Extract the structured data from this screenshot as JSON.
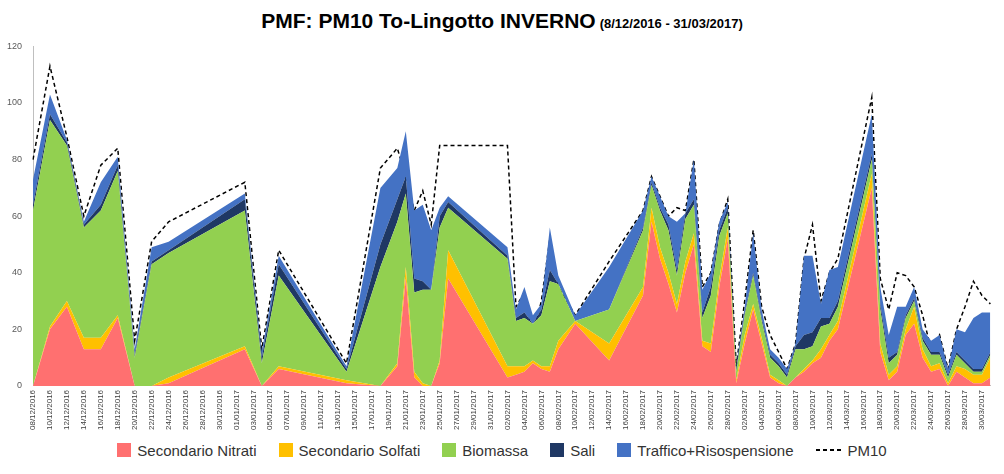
{
  "chart_data": {
    "type": "area",
    "stacked": true,
    "grid": false,
    "legend": "bottom",
    "title": "PMF: PM10 To-Lingotto INVERNO",
    "subtitle": "(8/12/2016 - 31/03/2017)",
    "ylim": [
      0,
      120
    ],
    "yticks": [
      0,
      20,
      40,
      60,
      80,
      100,
      120
    ],
    "categories": [
      "08/12/2016",
      null,
      "10/12/2016",
      null,
      "12/12/2016",
      null,
      "14/12/2016",
      null,
      "16/12/2016",
      null,
      "18/12/2016",
      null,
      "20/12/2016",
      null,
      "22/12/2016",
      null,
      "24/12/2016",
      null,
      "26/12/2016",
      null,
      "28/12/2016",
      null,
      "30/12/2016",
      null,
      "01/01/2017",
      null,
      "03/01/2017",
      null,
      "05/01/2017",
      null,
      "07/01/2017",
      null,
      "09/01/2017",
      null,
      "11/01/2017",
      null,
      "13/01/2017",
      null,
      "15/01/2017",
      null,
      "17/01/2017",
      null,
      "19/01/2017",
      null,
      "21/01/2017",
      null,
      "23/01/2017",
      null,
      "25/01/2017",
      null,
      "27/01/2017",
      null,
      "29/01/2017",
      null,
      "31/01/2017",
      null,
      "02/02/2017",
      null,
      "04/02/2017",
      null,
      "06/02/2017",
      null,
      "08/02/2017",
      null,
      "10/02/2017",
      null,
      "12/02/2017",
      null,
      "14/02/2017",
      null,
      "16/02/2017",
      null,
      "18/02/2017",
      null,
      "20/02/2017",
      null,
      "22/02/2017",
      null,
      "24/02/2017",
      null,
      "26/02/2017",
      null,
      "28/02/2017",
      null,
      "02/03/2017",
      null,
      "04/03/2017",
      null,
      "06/03/2017",
      null,
      "08/03/2017",
      null,
      "10/03/2017",
      null,
      "12/03/2017",
      null,
      "14/03/2017",
      null,
      "16/03/2017",
      null,
      "18/03/2017",
      null,
      "20/03/2017",
      null,
      "22/03/2017",
      null,
      "24/03/2017",
      null,
      "26/03/2017",
      null,
      "28/03/2017",
      null,
      "30/03/2017",
      null
    ],
    "series": [
      {
        "name": "Secondario Nitrati",
        "color": "#ff7070",
        "type": "area",
        "values": [
          0,
          null,
          20,
          null,
          28,
          null,
          13,
          null,
          13,
          null,
          24,
          null,
          0,
          null,
          0,
          null,
          1,
          null,
          null,
          null,
          null,
          null,
          null,
          null,
          null,
          13,
          null,
          0,
          null,
          6,
          null,
          null,
          null,
          null,
          null,
          null,
          null,
          1,
          null,
          null,
          null,
          0,
          null,
          7,
          38,
          3,
          0,
          0,
          8,
          38,
          null,
          null,
          null,
          null,
          null,
          null,
          3,
          4,
          5,
          8,
          6,
          5,
          13,
          null,
          22,
          null,
          null,
          null,
          9,
          null,
          null,
          null,
          32,
          58,
          45,
          36,
          26,
          40,
          50,
          14,
          12,
          35,
          52,
          1,
          15,
          27,
          15,
          3,
          1,
          0,
          3,
          5,
          8,
          10,
          16,
          20,
          null,
          null,
          null,
          70,
          12,
          2,
          5,
          18,
          22,
          10,
          5,
          6,
          0,
          5,
          3,
          1,
          1,
          3
        ]
      },
      {
        "name": "Secondario Solfati",
        "color": "#ffc000",
        "type": "area",
        "values": [
          0,
          null,
          1,
          null,
          2,
          null,
          4,
          null,
          4,
          null,
          1,
          null,
          0,
          null,
          0,
          null,
          2,
          null,
          null,
          null,
          null,
          null,
          null,
          null,
          null,
          1,
          null,
          0,
          null,
          1,
          null,
          null,
          null,
          null,
          null,
          null,
          null,
          1,
          null,
          null,
          null,
          0,
          null,
          1,
          4,
          2,
          1,
          0,
          1,
          10,
          null,
          null,
          null,
          null,
          null,
          null,
          4,
          3,
          2,
          1,
          1,
          2,
          3,
          null,
          1,
          null,
          null,
          null,
          6,
          null,
          null,
          null,
          3,
          5,
          4,
          4,
          3,
          4,
          4,
          2,
          3,
          3,
          4,
          1,
          3,
          2,
          2,
          1,
          1,
          0,
          0,
          1,
          1,
          3,
          2,
          3,
          null,
          null,
          null,
          5,
          3,
          2,
          2,
          2,
          6,
          3,
          2,
          2,
          1,
          2,
          3,
          3,
          3,
          7
        ]
      },
      {
        "name": "Biomassa",
        "color": "#92d050",
        "type": "area",
        "values": [
          62,
          null,
          73,
          null,
          55,
          null,
          39,
          null,
          45,
          null,
          51,
          null,
          10,
          null,
          43,
          null,
          44,
          null,
          null,
          null,
          null,
          null,
          null,
          null,
          null,
          48,
          null,
          8,
          null,
          32,
          null,
          null,
          null,
          null,
          null,
          null,
          null,
          3,
          null,
          null,
          null,
          42,
          null,
          50,
          26,
          28,
          33,
          34,
          47,
          15,
          null,
          null,
          null,
          null,
          null,
          null,
          38,
          16,
          17,
          13,
          18,
          30,
          20,
          null,
          0,
          null,
          null,
          null,
          12,
          null,
          null,
          null,
          20,
          8,
          13,
          15,
          10,
          15,
          10,
          8,
          17,
          15,
          5,
          3,
          7,
          10,
          6,
          6,
          5,
          3,
          10,
          7,
          5,
          8,
          4,
          5,
          null,
          null,
          null,
          5,
          12,
          4,
          4,
          4,
          2,
          3,
          4,
          3,
          2,
          4,
          2,
          1,
          1,
          1
        ]
      },
      {
        "name": "Sali",
        "color": "#1f3864",
        "type": "area",
        "values": [
          2,
          null,
          2,
          null,
          1,
          null,
          1,
          null,
          2,
          null,
          2,
          null,
          1,
          null,
          1,
          null,
          1,
          null,
          null,
          null,
          null,
          null,
          null,
          null,
          null,
          4,
          null,
          2,
          null,
          4,
          null,
          null,
          null,
          null,
          null,
          null,
          null,
          1,
          null,
          null,
          null,
          8,
          null,
          8,
          6,
          5,
          3,
          0,
          4,
          2,
          null,
          null,
          null,
          null,
          null,
          null,
          1,
          1,
          2,
          0,
          2,
          4,
          0,
          null,
          0,
          null,
          null,
          null,
          0,
          null,
          null,
          null,
          1,
          1,
          1,
          2,
          2,
          2,
          2,
          2,
          3,
          2,
          2,
          1,
          1,
          1,
          1,
          1,
          1,
          1,
          1,
          5,
          5,
          3,
          2,
          2,
          null,
          null,
          null,
          2,
          2,
          2,
          1,
          1,
          1,
          1,
          1,
          1,
          1,
          1,
          1,
          1,
          1,
          1
        ]
      },
      {
        "name": "Traffico+Risospensione",
        "color": "#4472c4",
        "type": "area",
        "values": [
          9,
          null,
          7,
          null,
          1,
          null,
          1,
          null,
          8,
          null,
          3,
          null,
          2,
          null,
          5,
          null,
          3,
          null,
          null,
          null,
          null,
          null,
          null,
          null,
          null,
          2,
          null,
          2,
          null,
          3,
          null,
          null,
          null,
          null,
          null,
          null,
          null,
          1,
          null,
          null,
          null,
          20,
          null,
          11,
          16,
          24,
          27,
          21,
          3,
          2,
          null,
          null,
          null,
          null,
          null,
          null,
          3,
          3,
          9,
          3,
          2,
          15,
          3,
          null,
          2,
          null,
          null,
          null,
          15,
          null,
          null,
          null,
          6,
          2,
          4,
          3,
          17,
          0,
          14,
          8,
          5,
          3,
          2,
          1,
          2,
          14,
          3,
          2,
          2,
          2,
          1,
          28,
          27,
          5,
          17,
          12,
          null,
          null,
          null,
          14,
          6,
          8,
          16,
          3,
          4,
          3,
          4,
          6,
          2,
          8,
          10,
          18,
          20,
          14
        ]
      },
      {
        "name": "PM10",
        "color": "#000000",
        "type": "line",
        "line_style": "dashed",
        "values": [
          80,
          null,
          113,
          null,
          88,
          null,
          60,
          null,
          78,
          null,
          84,
          null,
          16,
          null,
          51,
          null,
          58,
          null,
          null,
          null,
          null,
          null,
          null,
          null,
          null,
          72,
          null,
          13,
          null,
          48,
          null,
          null,
          null,
          null,
          null,
          null,
          null,
          8,
          null,
          null,
          null,
          77,
          null,
          84,
          74,
          62,
          69,
          57,
          85,
          85,
          null,
          null,
          null,
          null,
          null,
          null,
          85,
          28,
          33,
          18,
          30,
          52,
          35,
          null,
          25,
          null,
          null,
          null,
          44,
          null,
          null,
          null,
          62,
          74,
          67,
          60,
          63,
          62,
          80,
          35,
          40,
          57,
          66,
          7,
          30,
          55,
          28,
          18,
          12,
          6,
          15,
          45,
          57,
          30,
          40,
          45,
          null,
          null,
          null,
          102,
          38,
          27,
          40,
          39,
          35,
          25,
          13,
          18,
          6,
          20,
          28,
          37,
          32,
          29
        ]
      }
    ]
  }
}
